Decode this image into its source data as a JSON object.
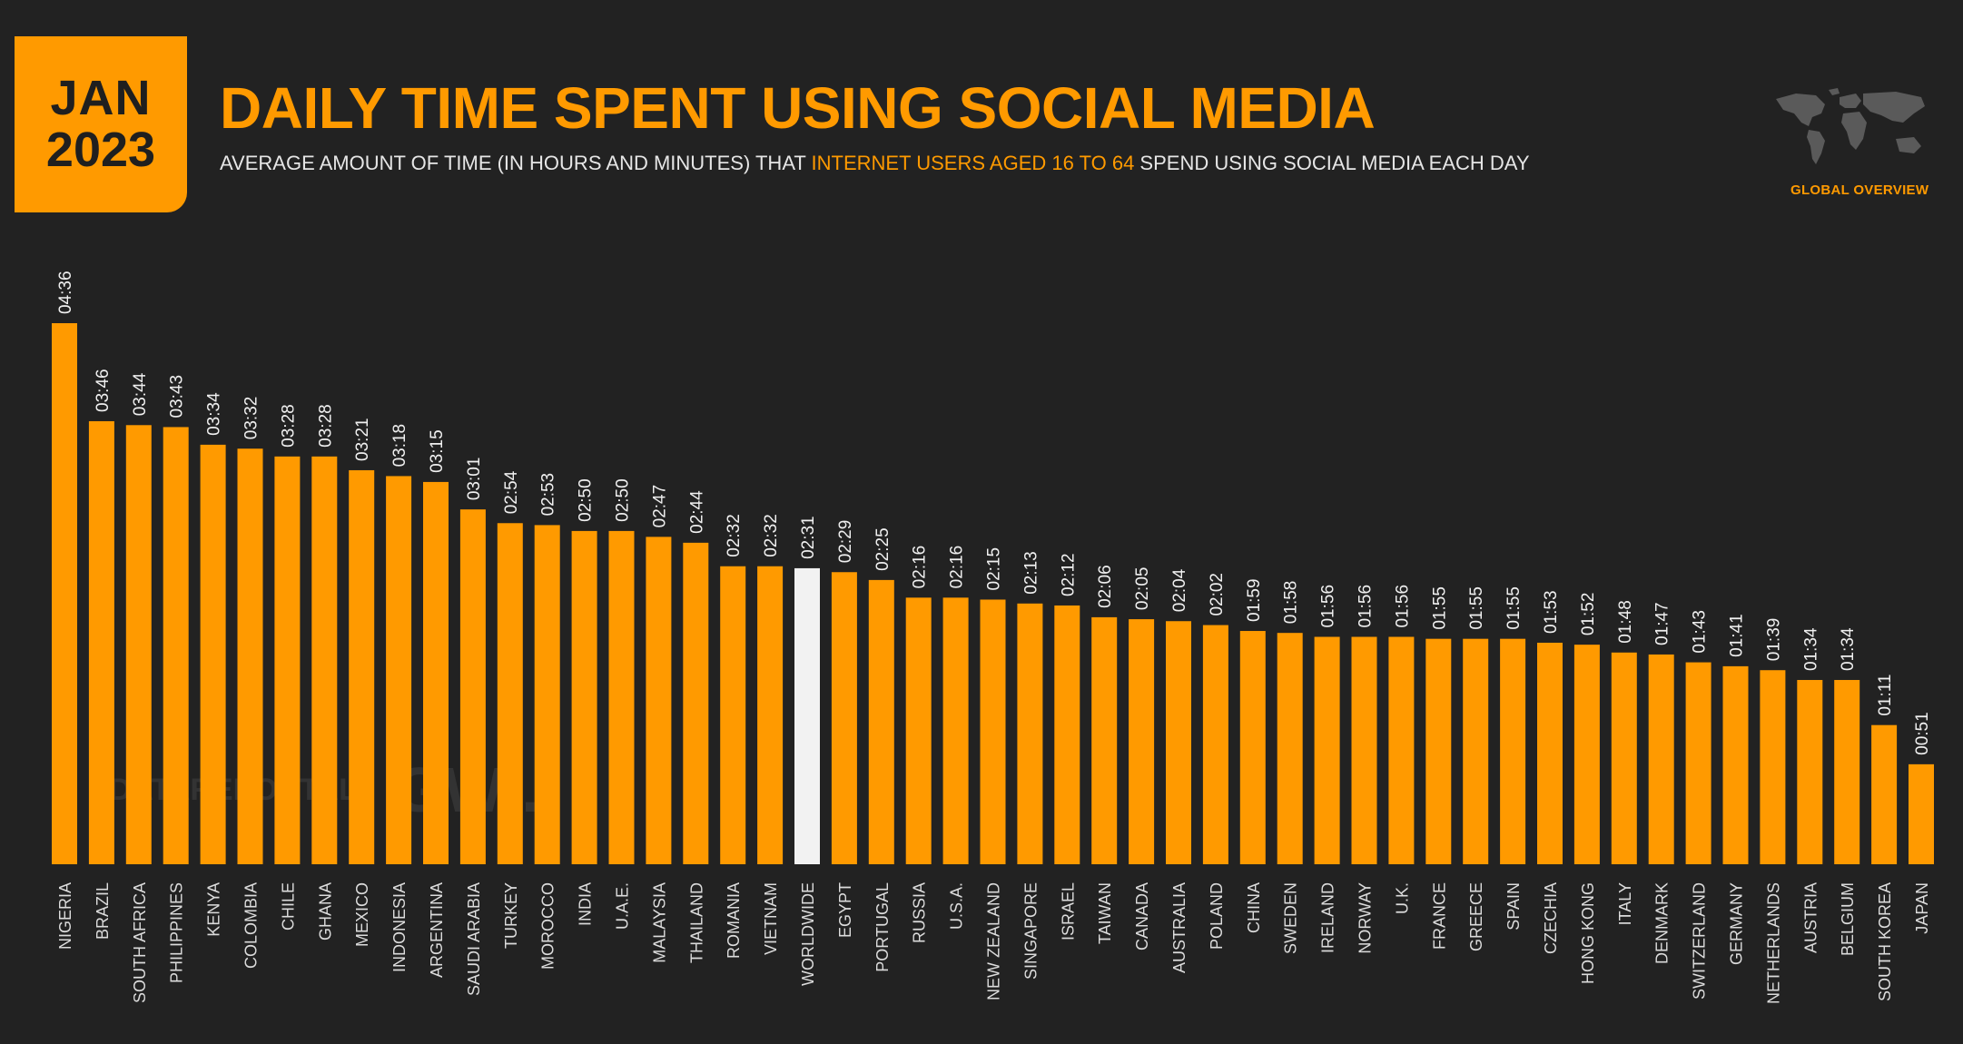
{
  "header": {
    "month": "JAN",
    "year": "2023",
    "title": "DAILY TIME SPENT USING SOCIAL MEDIA",
    "subtitle_pre": "AVERAGE AMOUNT OF TIME (IN HOURS AND MINUTES) THAT ",
    "subtitle_highlight": "INTERNET USERS AGED 16 TO 64",
    "subtitle_post": " SPEND USING SOCIAL MEDIA EACH DAY",
    "section_label": "GLOBAL OVERVIEW"
  },
  "watermark": {
    "left": "DATAREPORTAL",
    "right": "GWI."
  },
  "colors": {
    "background": "#222222",
    "accent": "#ff9a00",
    "highlight_bar": "#f2f2f2",
    "text": "#e6e6e6"
  },
  "chart_data": {
    "type": "bar",
    "categories": [
      "NIGERIA",
      "BRAZIL",
      "SOUTH AFRICA",
      "PHILIPPINES",
      "KENYA",
      "COLOMBIA",
      "CHILE",
      "GHANA",
      "MEXICO",
      "INDONESIA",
      "ARGENTINA",
      "SAUDI ARABIA",
      "TURKEY",
      "MOROCCO",
      "INDIA",
      "U.A.E.",
      "MALAYSIA",
      "THAILAND",
      "ROMANIA",
      "VIETNAM",
      "WORLDWIDE",
      "EGYPT",
      "PORTUGAL",
      "RUSSIA",
      "U.S.A.",
      "NEW ZEALAND",
      "SINGAPORE",
      "ISRAEL",
      "TAIWAN",
      "CANADA",
      "AUSTRALIA",
      "POLAND",
      "CHINA",
      "SWEDEN",
      "IRELAND",
      "NORWAY",
      "U.K.",
      "FRANCE",
      "GREECE",
      "SPAIN",
      "CZECHIA",
      "HONG KONG",
      "ITALY",
      "DENMARK",
      "SWITZERLAND",
      "GERMANY",
      "NETHERLANDS",
      "AUSTRIA",
      "BELGIUM",
      "SOUTH KOREA",
      "JAPAN"
    ],
    "labels": [
      "04:36",
      "03:46",
      "03:44",
      "03:43",
      "03:34",
      "03:32",
      "03:28",
      "03:28",
      "03:21",
      "03:18",
      "03:15",
      "03:01",
      "02:54",
      "02:53",
      "02:50",
      "02:50",
      "02:47",
      "02:44",
      "02:32",
      "02:32",
      "02:31",
      "02:29",
      "02:25",
      "02:16",
      "02:16",
      "02:15",
      "02:13",
      "02:12",
      "02:06",
      "02:05",
      "02:04",
      "02:02",
      "01:59",
      "01:58",
      "01:56",
      "01:56",
      "01:56",
      "01:55",
      "01:55",
      "01:55",
      "01:53",
      "01:52",
      "01:48",
      "01:47",
      "01:43",
      "01:41",
      "01:39",
      "01:34",
      "01:34",
      "01:11",
      "00:51"
    ],
    "values": [
      276,
      226,
      224,
      223,
      214,
      212,
      208,
      208,
      201,
      198,
      195,
      181,
      174,
      173,
      170,
      170,
      167,
      164,
      152,
      152,
      151,
      149,
      145,
      136,
      136,
      135,
      133,
      132,
      126,
      125,
      124,
      122,
      119,
      118,
      116,
      116,
      116,
      115,
      115,
      115,
      113,
      112,
      108,
      107,
      103,
      101,
      99,
      94,
      94,
      71,
      51
    ],
    "unit": "minutes",
    "highlight_category": "WORLDWIDE",
    "ylim": [
      0,
      276
    ]
  }
}
